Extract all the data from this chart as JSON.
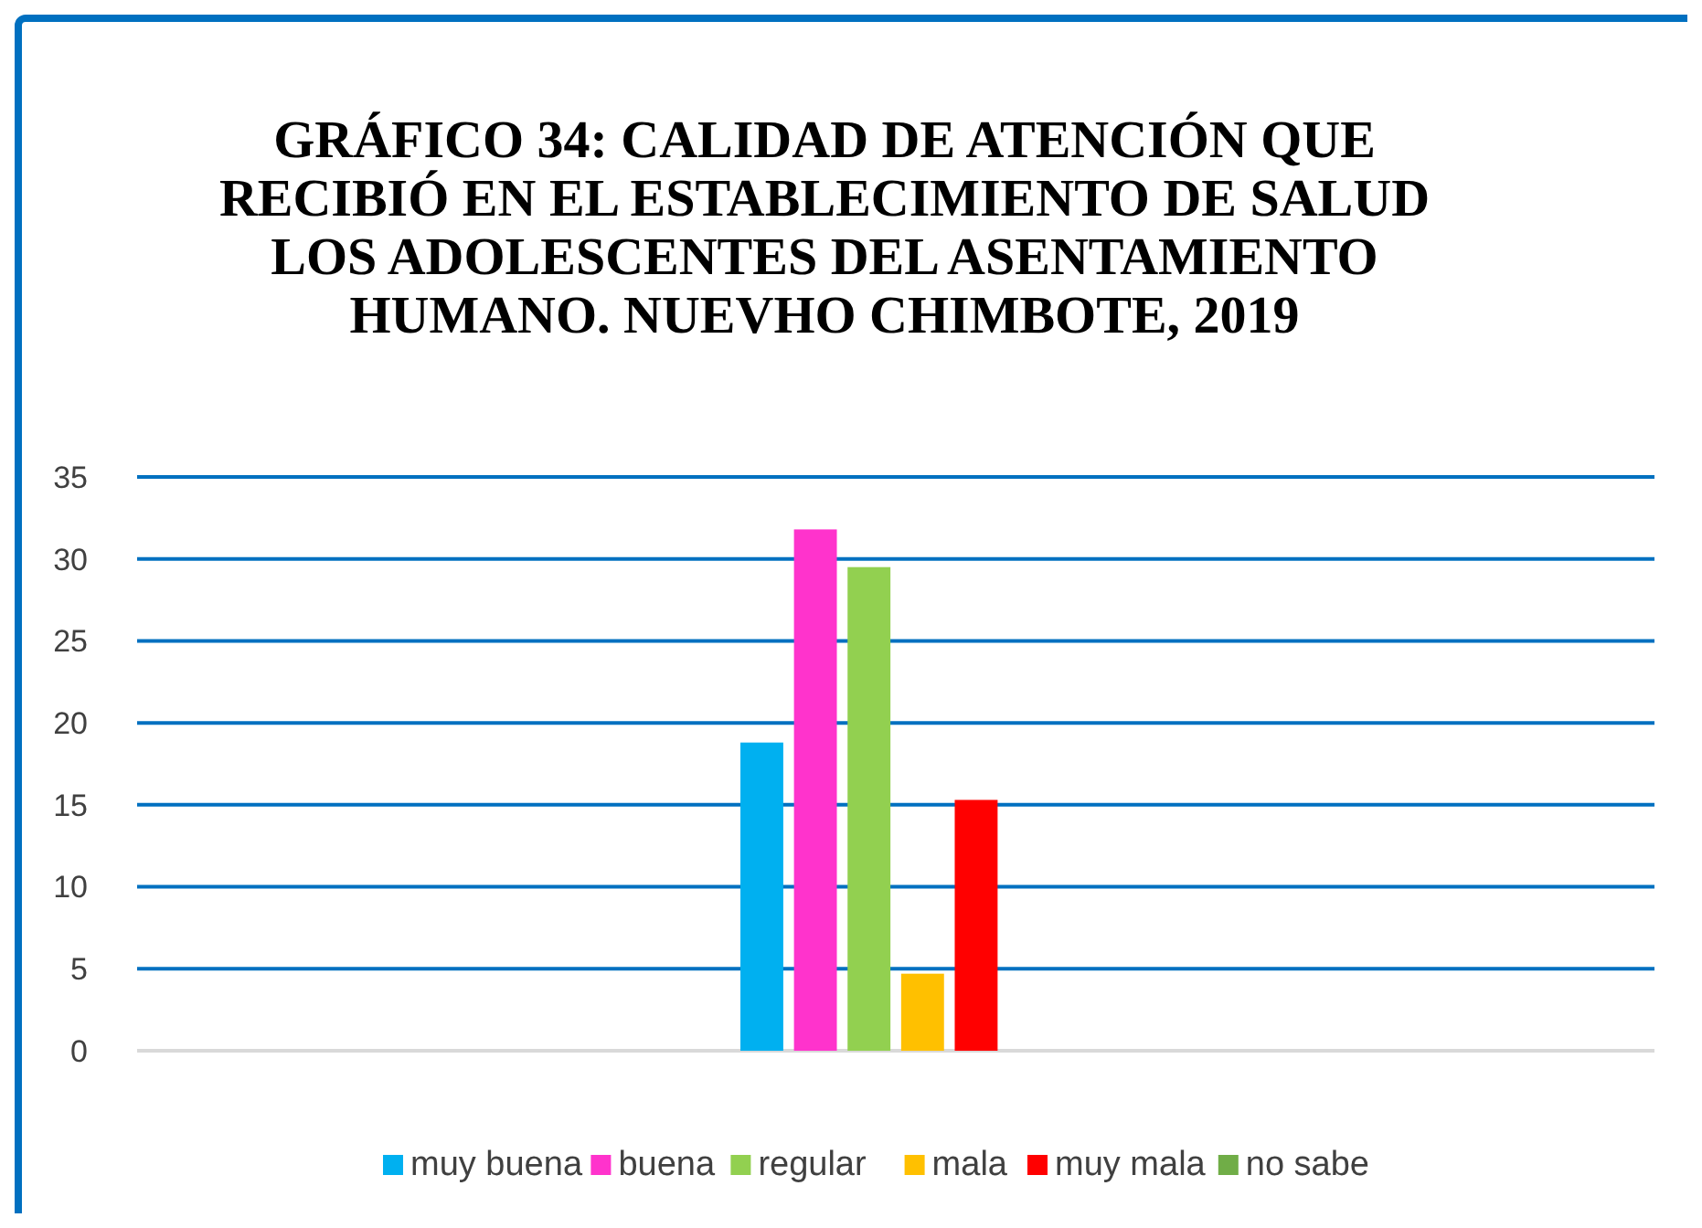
{
  "chart_data": {
    "type": "bar",
    "title": "GRÁFICO 34: CALIDAD DE ATENCIÓN QUE RECIBIÓ EN EL ESTABLECIMIENTO DE SALUD LOS ADOLESCENTES DEL ASENTAMIENTO HUMANO. NUEVHO CHIMBOTE, 2019",
    "categories": [
      null
    ],
    "series": [
      {
        "name": "muy buena",
        "color": "#00b0f0",
        "values": [
          18.8
        ]
      },
      {
        "name": "buena",
        "color": "#ff33cc",
        "values": [
          31.8
        ]
      },
      {
        "name": "regular",
        "color": "#92d050",
        "values": [
          29.5
        ]
      },
      {
        "name": "mala",
        "color": "#ffc000",
        "values": [
          4.7
        ]
      },
      {
        "name": "muy mala",
        "color": "#ff0000",
        "values": [
          15.3
        ]
      },
      {
        "name": "no sabe",
        "color": "#70ad47",
        "values": [
          0
        ]
      }
    ],
    "ylim": [
      0,
      35
    ],
    "yticks": [
      0,
      5,
      10,
      15,
      20,
      25,
      30,
      35
    ],
    "grid": "y",
    "legend": "bottom"
  }
}
